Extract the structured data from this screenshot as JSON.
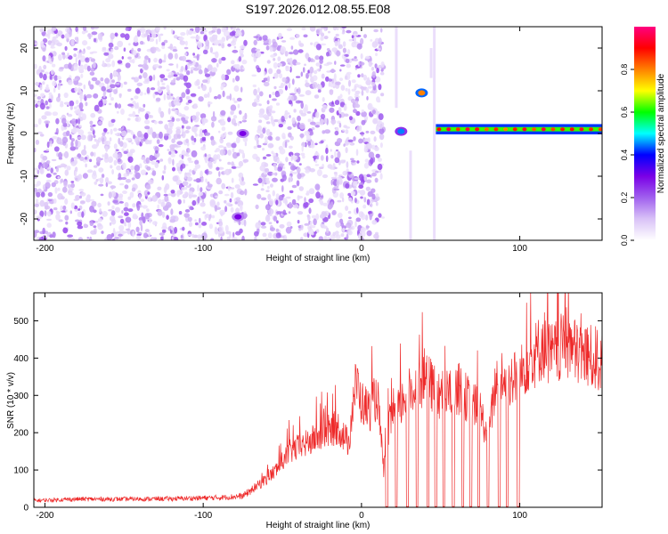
{
  "title": "S197.2026.012.08.55.E08",
  "chart_data": [
    {
      "type": "heatmap",
      "title": "S197.2026.012.08.55.E08",
      "xlabel": "Height of straight line (km)",
      "ylabel": "Frequency (Hz)",
      "xlim": [
        -207,
        152
      ],
      "ylim": [
        -25,
        25
      ],
      "xticks": [
        -200,
        -100,
        0,
        100
      ],
      "yticks": [
        -20,
        -10,
        0,
        10,
        20
      ],
      "colorbar": {
        "label": "Normalized spectral amplitude",
        "range": [
          0.0,
          1.0
        ],
        "ticks": [
          0.0,
          0.2,
          0.4,
          0.6,
          0.8
        ],
        "tick_labels": [
          "0.0",
          "0.2",
          "0.4",
          "0.6",
          "0.8"
        ],
        "colormap": [
          "#ffffff",
          "#d9c2f7",
          "#a060ee",
          "#7a00e6",
          "#0000ff",
          "#00ffff",
          "#00ff00",
          "#ffff00",
          "#ff8000",
          "#ff0000",
          "#ff0080"
        ]
      },
      "features": [
        {
          "name": "broadband noise",
          "x_range": [
            -207,
            15
          ],
          "freq_range": [
            -25,
            25
          ],
          "amplitude": 0.08
        },
        {
          "name": "blank gap",
          "x_range": [
            -73,
            -68
          ],
          "freq_range": [
            -25,
            25
          ],
          "amplitude": 0.0
        },
        {
          "name": "blank gap",
          "x_range": [
            14,
            47
          ],
          "freq_range": [
            -25,
            25
          ],
          "amplitude": 0.0
        },
        {
          "name": "spot",
          "x": -78,
          "freq": -19.5,
          "amplitude": 0.3
        },
        {
          "name": "spot",
          "x": -75,
          "freq": 0,
          "amplitude": 0.3
        },
        {
          "name": "spot",
          "x": 25,
          "freq": 0.5,
          "amplitude": 0.45
        },
        {
          "name": "spot",
          "x": 38,
          "freq": 9.5,
          "amplitude": 0.8
        },
        {
          "name": "tone line",
          "x_range": [
            47,
            152
          ],
          "freq": 1,
          "amplitude": 0.7
        }
      ]
    },
    {
      "type": "line",
      "xlabel": "Height of straight line (km)",
      "ylabel": "SNR (10 * v/v)",
      "xlim": [
        -207,
        152
      ],
      "ylim": [
        0,
        575
      ],
      "xticks": [
        -200,
        -100,
        0,
        100
      ],
      "yticks": [
        0,
        100,
        200,
        300,
        400,
        500
      ],
      "series": [
        {
          "name": "SNR",
          "color": "#ee2a2a",
          "x": [
            -207,
            -180,
            -150,
            -120,
            -90,
            -75,
            -65,
            -55,
            -45,
            -35,
            -25,
            -15,
            -8,
            -5,
            -3,
            0,
            5,
            10,
            14,
            18,
            22,
            28,
            32,
            36,
            40,
            45,
            50,
            55,
            60,
            65,
            70,
            75,
            80,
            85,
            90,
            95,
            100,
            105,
            110,
            115,
            120,
            125,
            130,
            135,
            140,
            145,
            152
          ],
          "values": [
            18,
            22,
            22,
            23,
            26,
            30,
            60,
            95,
            150,
            170,
            195,
            215,
            170,
            300,
            335,
            280,
            260,
            300,
            100,
            230,
            250,
            300,
            310,
            325,
            350,
            320,
            300,
            305,
            320,
            300,
            280,
            260,
            180,
            340,
            340,
            345,
            350,
            395,
            410,
            440,
            405,
            420,
            440,
            415,
            410,
            400,
            395
          ]
        }
      ],
      "dropouts_x": [
        16,
        22,
        29,
        35,
        42,
        47,
        52,
        58,
        64,
        69,
        74,
        80,
        87,
        92,
        99
      ]
    }
  ]
}
